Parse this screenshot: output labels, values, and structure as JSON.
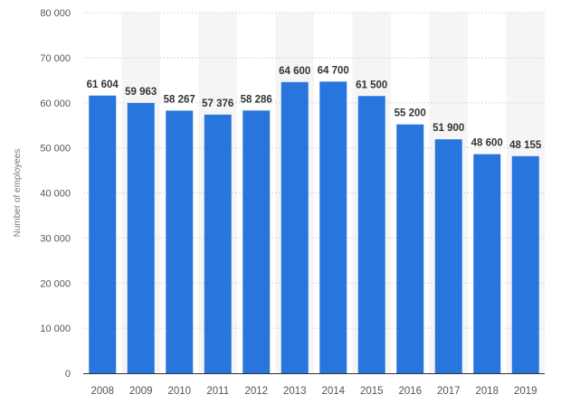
{
  "chart_data": {
    "type": "bar",
    "ylabel": "Number of employees",
    "categories": [
      "2008",
      "2009",
      "2010",
      "2011",
      "2012",
      "2013",
      "2014",
      "2015",
      "2016",
      "2017",
      "2018",
      "2019"
    ],
    "values": [
      61604,
      59963,
      58267,
      57376,
      58286,
      64600,
      64700,
      61500,
      55200,
      51900,
      48600,
      48155
    ],
    "value_labels": [
      "61 604",
      "59 963",
      "58 267",
      "57 376",
      "58 286",
      "64 600",
      "64 700",
      "61 500",
      "55 200",
      "51 900",
      "48 600",
      "48 155"
    ],
    "ylim": [
      0,
      80000
    ],
    "y_ticks": [
      0,
      10000,
      20000,
      30000,
      40000,
      50000,
      60000,
      70000,
      80000
    ],
    "y_tick_labels": [
      "0",
      "10 000",
      "20 000",
      "30 000",
      "40 000",
      "50 000",
      "60 000",
      "70 000",
      "80 000"
    ],
    "grid": true,
    "bar_color": "#2876dd",
    "alt_band_color": "#f5f5f5"
  }
}
